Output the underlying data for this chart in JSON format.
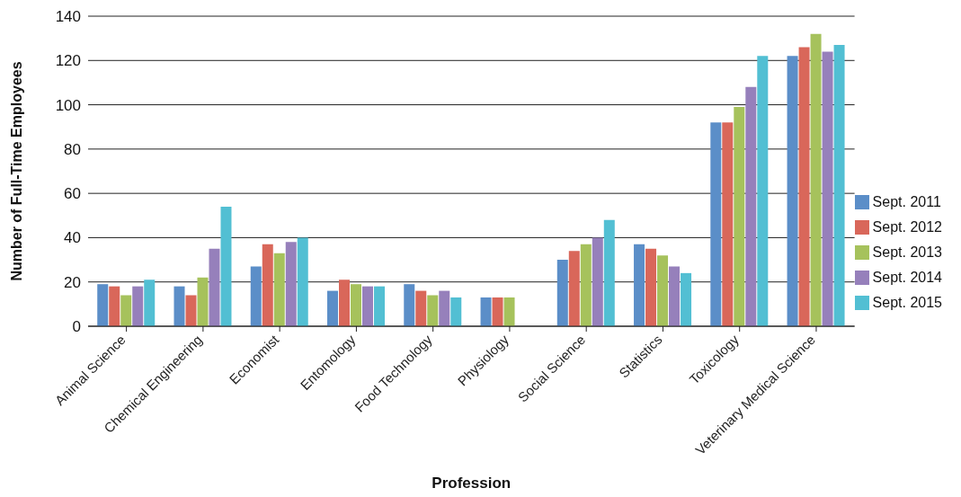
{
  "chart_data": {
    "type": "bar",
    "xlabel": "Profession",
    "ylabel": "Number of Full-Time Employees",
    "categories": [
      "Animal Science",
      "Chemical Engineering",
      "Economist",
      "Entomology",
      "Food Technology",
      "Physiology",
      "Social Science",
      "Statistics",
      "Toxicology",
      "Veterinary Medical Science"
    ],
    "series": [
      {
        "name": "Sept. 2011",
        "color": "#5b8ec8",
        "values": [
          19,
          18,
          27,
          16,
          19,
          13,
          30,
          37,
          92,
          122
        ]
      },
      {
        "name": "Sept. 2012",
        "color": "#d9675a",
        "values": [
          18,
          14,
          37,
          21,
          16,
          13,
          34,
          35,
          92,
          126
        ]
      },
      {
        "name": "Sept. 2013",
        "color": "#a6c25c",
        "values": [
          14,
          22,
          33,
          19,
          14,
          13,
          37,
          32,
          99,
          132
        ]
      },
      {
        "name": "Sept. 2014",
        "color": "#9680bb",
        "values": [
          18,
          35,
          38,
          18,
          16,
          null,
          40,
          27,
          108,
          124
        ]
      },
      {
        "name": "Sept. 2015",
        "color": "#52bfd3",
        "values": [
          21,
          54,
          40,
          18,
          13,
          null,
          48,
          24,
          122,
          127
        ]
      }
    ],
    "ylim": [
      0,
      140
    ],
    "yticks": [
      0,
      20,
      40,
      60,
      80,
      100,
      120,
      140
    ],
    "grid": "y",
    "legend": "right"
  }
}
